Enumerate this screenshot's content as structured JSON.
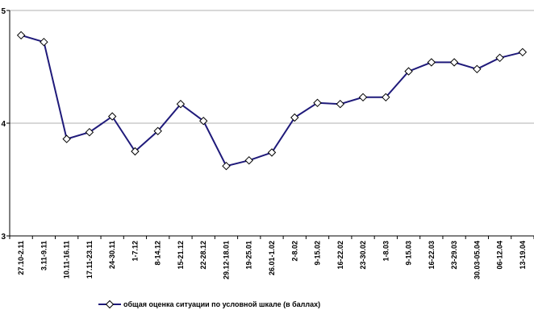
{
  "chart_data": {
    "type": "line",
    "title": "",
    "xlabel": "",
    "ylabel": "",
    "ylim": [
      3,
      5
    ],
    "yticks": [
      "3",
      "4",
      "5"
    ],
    "grid": "horizontal",
    "legend_position": "bottom",
    "categories": [
      "27.10-2.11",
      "3.11-9.11",
      "10.11-16.11",
      "17.11-23.11",
      "24-30.11",
      "1-7.12",
      "8-14.12",
      "15-21.12",
      "22-28.12",
      "29.12-18.01",
      "19-25.01",
      "26.01-1.02",
      "2-8.02",
      "9-15.02",
      "16-22.02",
      "23-30.02",
      "1-8.03",
      "9-15.03",
      "16-22.03",
      "23-29.03",
      "30.03-05.04",
      "06-12.04",
      "13-19.04"
    ],
    "series": [
      {
        "name": "общая оценка ситуации по условной шкале (в баллах)",
        "color": "#1f1a7a",
        "marker": "diamond",
        "values": [
          4.78,
          4.72,
          3.86,
          3.92,
          4.06,
          3.75,
          3.93,
          4.17,
          4.02,
          3.62,
          3.67,
          3.74,
          4.05,
          4.18,
          4.17,
          4.23,
          4.23,
          4.46,
          4.54,
          4.54,
          4.48,
          4.58,
          4.63
        ]
      }
    ]
  }
}
